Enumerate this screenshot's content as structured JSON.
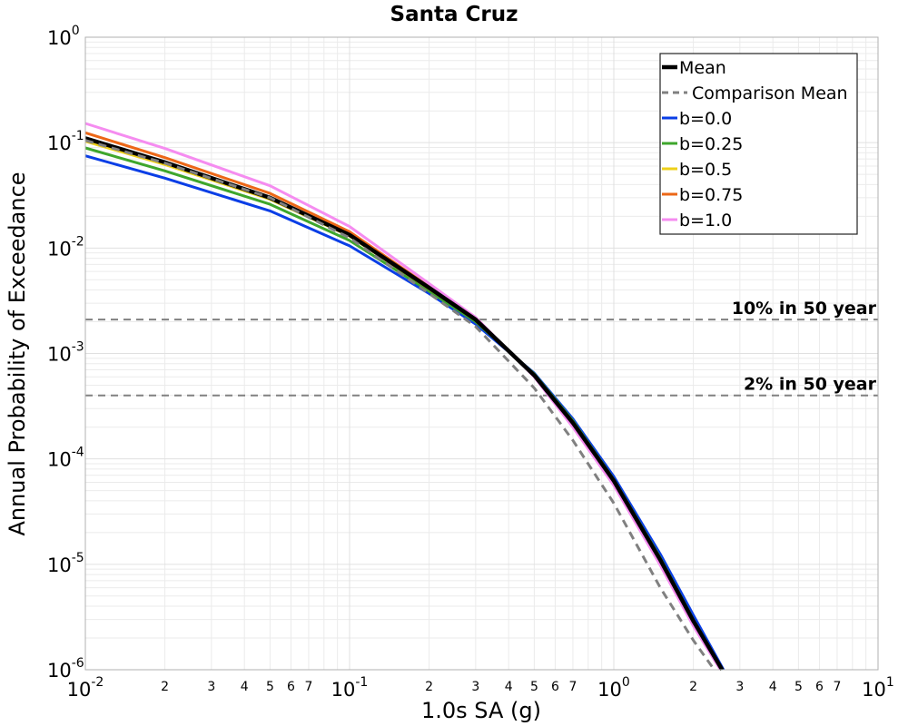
{
  "chart_data": {
    "type": "line",
    "title": "Santa Cruz",
    "xlabel": "1.0s SA (g)",
    "ylabel": "Annual Probability of Exceedance",
    "xscale": "log",
    "yscale": "log",
    "xlim": [
      0.01,
      10
    ],
    "ylim": [
      1e-06,
      1
    ],
    "grid": true,
    "legend_position": "top-right",
    "x_major_ticks": [
      {
        "value": 0.01,
        "base": "10",
        "exp": "-2"
      },
      {
        "value": 0.1,
        "base": "10",
        "exp": "-1"
      },
      {
        "value": 1,
        "base": "10",
        "exp": "0"
      },
      {
        "value": 10,
        "base": "10",
        "exp": "1"
      }
    ],
    "y_major_ticks": [
      {
        "value": 1e-06,
        "base": "10",
        "exp": "-6"
      },
      {
        "value": 1e-05,
        "base": "10",
        "exp": "-5"
      },
      {
        "value": 0.0001,
        "base": "10",
        "exp": "-4"
      },
      {
        "value": 0.001,
        "base": "10",
        "exp": "-3"
      },
      {
        "value": 0.01,
        "base": "10",
        "exp": "-2"
      },
      {
        "value": 0.1,
        "base": "10",
        "exp": "-1"
      },
      {
        "value": 1,
        "base": "10",
        "exp": "0"
      }
    ],
    "x_minor_tick_labels": [
      "2",
      "3",
      "4",
      "5",
      "6",
      "7"
    ],
    "reference_lines": [
      {
        "label": "10% in 50 year",
        "y": 0.0021,
        "color": "#808080"
      },
      {
        "label": "2% in 50 year",
        "y": 0.0004,
        "color": "#808080"
      }
    ],
    "series": [
      {
        "name": "b=0.0",
        "color": "#0a3ee6",
        "width": 3,
        "dash": "",
        "x": [
          0.01,
          0.02,
          0.05,
          0.1,
          0.2,
          0.3,
          0.5,
          0.7,
          1.0,
          1.5,
          2.0,
          2.6
        ],
        "y": [
          0.075,
          0.046,
          0.0225,
          0.0105,
          0.0037,
          0.0019,
          0.00065,
          0.00024,
          6.8e-05,
          1.25e-05,
          3.3e-06,
          1e-06
        ]
      },
      {
        "name": "b=0.25",
        "color": "#3ea62c",
        "width": 3,
        "dash": "",
        "x": [
          0.01,
          0.02,
          0.05,
          0.1,
          0.2,
          0.3,
          0.5,
          0.7,
          1.0,
          1.5,
          2.0,
          2.58
        ],
        "y": [
          0.089,
          0.054,
          0.026,
          0.0118,
          0.0039,
          0.002,
          0.00064,
          0.00023,
          6.4e-05,
          1.15e-05,
          3e-06,
          1e-06
        ]
      },
      {
        "name": "b=0.5",
        "color": "#eed01a",
        "width": 3,
        "dash": "",
        "x": [
          0.01,
          0.02,
          0.05,
          0.1,
          0.2,
          0.3,
          0.5,
          0.7,
          1.0,
          1.5,
          2.0,
          2.56
        ],
        "y": [
          0.103,
          0.062,
          0.029,
          0.013,
          0.0041,
          0.0021,
          0.00062,
          0.00022,
          6.1e-05,
          1.08e-05,
          2.8e-06,
          1e-06
        ]
      },
      {
        "name": "b=0.75",
        "color": "#ec6717",
        "width": 3,
        "dash": "",
        "x": [
          0.01,
          0.02,
          0.05,
          0.1,
          0.2,
          0.3,
          0.5,
          0.7,
          1.0,
          1.5,
          2.0,
          2.55
        ],
        "y": [
          0.124,
          0.072,
          0.033,
          0.0143,
          0.0043,
          0.0021,
          0.00061,
          0.00021,
          5.9e-05,
          1.02e-05,
          2.7e-06,
          1e-06
        ]
      },
      {
        "name": "b=1.0",
        "color": "#f58cf0",
        "width": 3,
        "dash": "",
        "x": [
          0.01,
          0.02,
          0.05,
          0.1,
          0.2,
          0.3,
          0.5,
          0.7,
          1.0,
          1.5,
          2.0,
          2.53
        ],
        "y": [
          0.152,
          0.088,
          0.039,
          0.016,
          0.0046,
          0.0022,
          0.0006,
          0.0002,
          5.6e-05,
          9.8e-06,
          2.6e-06,
          1e-06
        ]
      },
      {
        "name": "Mean",
        "color": "#000000",
        "width": 4.5,
        "dash": "",
        "x": [
          0.01,
          0.02,
          0.05,
          0.1,
          0.2,
          0.3,
          0.5,
          0.7,
          1.0,
          1.5,
          2.0,
          2.57
        ],
        "y": [
          0.11,
          0.065,
          0.03,
          0.0133,
          0.0042,
          0.0021,
          0.00062,
          0.00022,
          6.2e-05,
          1.1e-05,
          2.9e-06,
          1e-06
        ]
      },
      {
        "name": "Comparison Mean",
        "color": "#808080",
        "width": 3,
        "dash": "9,6",
        "x": [
          0.01,
          0.02,
          0.05,
          0.1,
          0.2,
          0.3,
          0.5,
          0.7,
          1.0,
          1.5,
          2.0,
          2.4
        ],
        "y": [
          0.105,
          0.064,
          0.03,
          0.0125,
          0.0037,
          0.0018,
          0.00047,
          0.00015,
          3.8e-05,
          6e-06,
          1.9e-06,
          1e-06
        ]
      }
    ],
    "legend_order": [
      "Mean",
      "Comparison Mean",
      "b=0.0",
      "b=0.25",
      "b=0.5",
      "b=0.75",
      "b=1.0"
    ]
  }
}
